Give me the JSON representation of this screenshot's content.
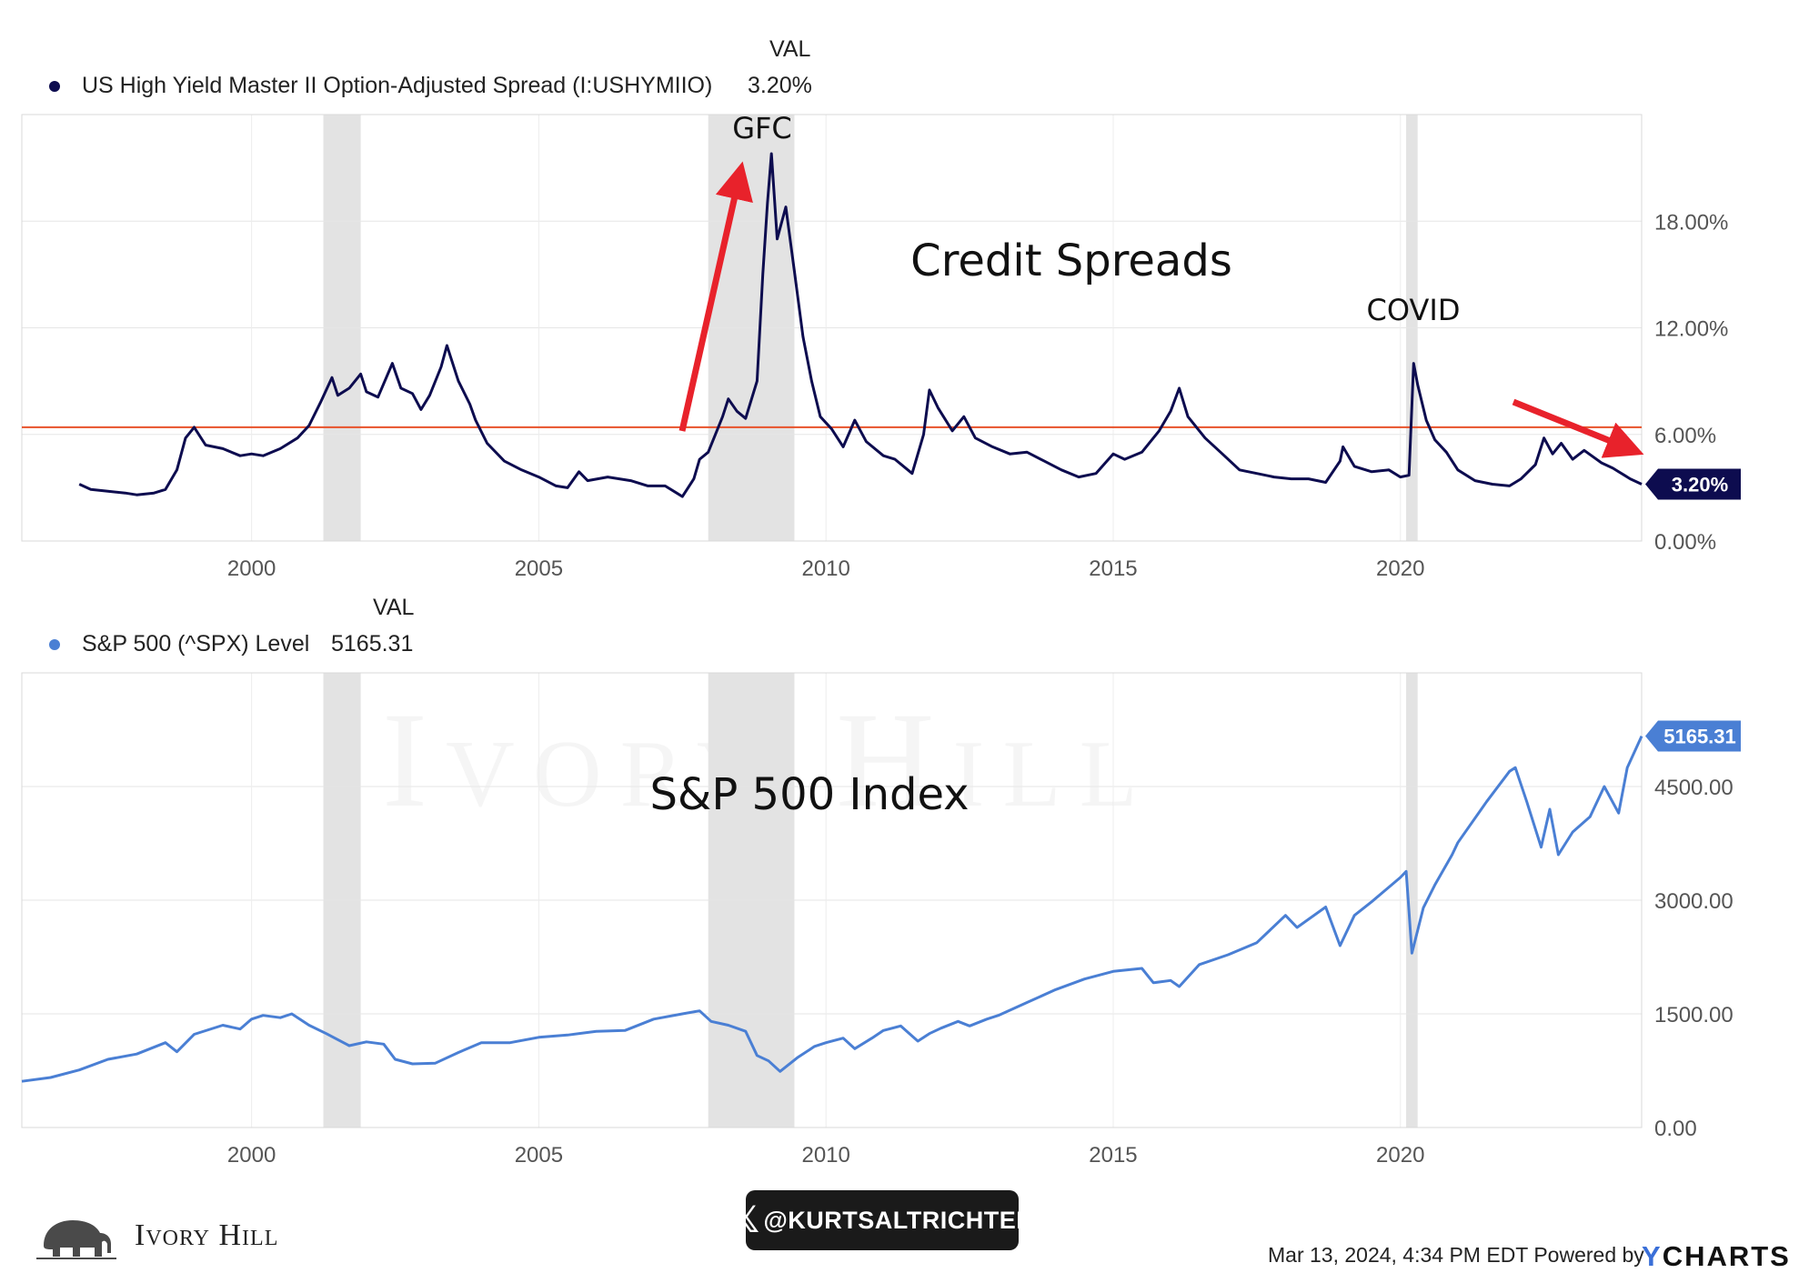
{
  "chart_data": [
    {
      "type": "line",
      "series": [
        {
          "name": "US High Yield Master II Option-Adjusted Spread (I:USHYMIIO)",
          "color": "#0d0c4f",
          "last_value_label": "3.20%",
          "points": [
            [
              1997.0,
              3.2
            ],
            [
              1997.2,
              2.9
            ],
            [
              1997.5,
              2.8
            ],
            [
              1997.8,
              2.7
            ],
            [
              1998.0,
              2.6
            ],
            [
              1998.3,
              2.7
            ],
            [
              1998.5,
              2.9
            ],
            [
              1998.7,
              4.0
            ],
            [
              1998.85,
              5.8
            ],
            [
              1999.0,
              6.4
            ],
            [
              1999.2,
              5.4
            ],
            [
              1999.5,
              5.2
            ],
            [
              1999.8,
              4.8
            ],
            [
              2000.0,
              4.9
            ],
            [
              2000.2,
              4.8
            ],
            [
              2000.5,
              5.2
            ],
            [
              2000.8,
              5.8
            ],
            [
              2001.0,
              6.5
            ],
            [
              2001.2,
              7.8
            ],
            [
              2001.4,
              9.2
            ],
            [
              2001.5,
              8.2
            ],
            [
              2001.7,
              8.6
            ],
            [
              2001.9,
              9.4
            ],
            [
              2002.0,
              8.4
            ],
            [
              2002.2,
              8.1
            ],
            [
              2002.45,
              10.0
            ],
            [
              2002.6,
              8.6
            ],
            [
              2002.8,
              8.3
            ],
            [
              2002.95,
              7.4
            ],
            [
              2003.1,
              8.2
            ],
            [
              2003.3,
              9.8
            ],
            [
              2003.4,
              11.0
            ],
            [
              2003.6,
              9.0
            ],
            [
              2003.8,
              7.7
            ],
            [
              2003.9,
              6.8
            ],
            [
              2004.1,
              5.5
            ],
            [
              2004.4,
              4.5
            ],
            [
              2004.7,
              4.0
            ],
            [
              2005.0,
              3.6
            ],
            [
              2005.3,
              3.1
            ],
            [
              2005.5,
              3.0
            ],
            [
              2005.7,
              3.9
            ],
            [
              2005.85,
              3.4
            ],
            [
              2006.2,
              3.6
            ],
            [
              2006.6,
              3.4
            ],
            [
              2006.9,
              3.1
            ],
            [
              2007.2,
              3.1
            ],
            [
              2007.4,
              2.7
            ],
            [
              2007.5,
              2.5
            ],
            [
              2007.7,
              3.5
            ],
            [
              2007.8,
              4.6
            ],
            [
              2007.95,
              5.0
            ],
            [
              2008.1,
              6.2
            ],
            [
              2008.2,
              7.0
            ],
            [
              2008.3,
              8.0
            ],
            [
              2008.45,
              7.3
            ],
            [
              2008.6,
              6.9
            ],
            [
              2008.8,
              9.0
            ],
            [
              2008.9,
              15.0
            ],
            [
              2008.98,
              19.0
            ],
            [
              2009.05,
              21.8
            ],
            [
              2009.15,
              17.0
            ],
            [
              2009.3,
              18.8
            ],
            [
              2009.45,
              15.2
            ],
            [
              2009.6,
              11.5
            ],
            [
              2009.75,
              9.0
            ],
            [
              2009.9,
              7.0
            ],
            [
              2010.1,
              6.3
            ],
            [
              2010.3,
              5.3
            ],
            [
              2010.5,
              6.8
            ],
            [
              2010.7,
              5.6
            ],
            [
              2011.0,
              4.8
            ],
            [
              2011.2,
              4.6
            ],
            [
              2011.5,
              3.8
            ],
            [
              2011.7,
              6.0
            ],
            [
              2011.8,
              8.5
            ],
            [
              2011.95,
              7.5
            ],
            [
              2012.2,
              6.2
            ],
            [
              2012.4,
              7.0
            ],
            [
              2012.6,
              5.8
            ],
            [
              2012.9,
              5.3
            ],
            [
              2013.2,
              4.9
            ],
            [
              2013.5,
              5.0
            ],
            [
              2013.8,
              4.5
            ],
            [
              2014.1,
              4.0
            ],
            [
              2014.4,
              3.6
            ],
            [
              2014.7,
              3.8
            ],
            [
              2015.0,
              4.9
            ],
            [
              2015.2,
              4.6
            ],
            [
              2015.5,
              5.0
            ],
            [
              2015.8,
              6.2
            ],
            [
              2016.0,
              7.3
            ],
            [
              2016.15,
              8.6
            ],
            [
              2016.3,
              7.0
            ],
            [
              2016.6,
              5.8
            ],
            [
              2016.9,
              4.9
            ],
            [
              2017.2,
              4.0
            ],
            [
              2017.5,
              3.8
            ],
            [
              2017.8,
              3.6
            ],
            [
              2018.1,
              3.5
            ],
            [
              2018.4,
              3.5
            ],
            [
              2018.7,
              3.3
            ],
            [
              2018.95,
              4.5
            ],
            [
              2019.0,
              5.3
            ],
            [
              2019.2,
              4.2
            ],
            [
              2019.5,
              3.9
            ],
            [
              2019.8,
              4.0
            ],
            [
              2020.0,
              3.6
            ],
            [
              2020.15,
              3.7
            ],
            [
              2020.23,
              10.0
            ],
            [
              2020.3,
              8.8
            ],
            [
              2020.45,
              6.8
            ],
            [
              2020.6,
              5.7
            ],
            [
              2020.8,
              5.0
            ],
            [
              2021.0,
              4.0
            ],
            [
              2021.3,
              3.4
            ],
            [
              2021.6,
              3.2
            ],
            [
              2021.9,
              3.1
            ],
            [
              2022.1,
              3.5
            ],
            [
              2022.35,
              4.3
            ],
            [
              2022.5,
              5.8
            ],
            [
              2022.65,
              4.9
            ],
            [
              2022.8,
              5.5
            ],
            [
              2023.0,
              4.6
            ],
            [
              2023.2,
              5.1
            ],
            [
              2023.5,
              4.4
            ],
            [
              2023.7,
              4.1
            ],
            [
              2023.9,
              3.7
            ],
            [
              2024.0,
              3.5
            ],
            [
              2024.2,
              3.2
            ]
          ]
        }
      ],
      "ylim": [
        0,
        24
      ],
      "xlim": [
        1996.0,
        2024.2
      ],
      "yticks": [
        0,
        6,
        12,
        18
      ],
      "ytick_labels": [
        "0.00%",
        "6.00%",
        "12.00%",
        "18.00%"
      ],
      "xticks": [
        2000,
        2005,
        2010,
        2015,
        2020
      ],
      "xtick_labels": [
        "2000",
        "2005",
        "2010",
        "2015",
        "2020"
      ],
      "reference_line": {
        "y": 6.4,
        "color": "#e8522a"
      },
      "annotations": {
        "title": "Credit Spreads",
        "gfc": "GFC",
        "covid": "COVID"
      },
      "recession_bands": [
        [
          2001.25,
          2001.9
        ],
        [
          2007.95,
          2009.45
        ],
        [
          2020.1,
          2020.3
        ]
      ],
      "grid": true
    },
    {
      "type": "line",
      "series": [
        {
          "name": "S&P 500 (^SPX) Level",
          "color": "#4a7fd4",
          "last_value_label": "5165.31",
          "points": [
            [
              1996.0,
              610
            ],
            [
              1996.5,
              660
            ],
            [
              1997.0,
              760
            ],
            [
              1997.5,
              900
            ],
            [
              1998.0,
              970
            ],
            [
              1998.5,
              1120
            ],
            [
              1998.7,
              1000
            ],
            [
              1999.0,
              1230
            ],
            [
              1999.5,
              1350
            ],
            [
              1999.8,
              1300
            ],
            [
              2000.0,
              1430
            ],
            [
              2000.2,
              1480
            ],
            [
              2000.5,
              1450
            ],
            [
              2000.7,
              1500
            ],
            [
              2001.0,
              1350
            ],
            [
              2001.3,
              1240
            ],
            [
              2001.7,
              1080
            ],
            [
              2002.0,
              1130
            ],
            [
              2002.3,
              1100
            ],
            [
              2002.5,
              900
            ],
            [
              2002.8,
              840
            ],
            [
              2003.2,
              850
            ],
            [
              2003.6,
              990
            ],
            [
              2004.0,
              1120
            ],
            [
              2004.5,
              1120
            ],
            [
              2005.0,
              1190
            ],
            [
              2005.5,
              1220
            ],
            [
              2006.0,
              1270
            ],
            [
              2006.5,
              1280
            ],
            [
              2007.0,
              1430
            ],
            [
              2007.5,
              1500
            ],
            [
              2007.8,
              1540
            ],
            [
              2008.0,
              1400
            ],
            [
              2008.3,
              1350
            ],
            [
              2008.6,
              1270
            ],
            [
              2008.8,
              950
            ],
            [
              2009.0,
              880
            ],
            [
              2009.2,
              740
            ],
            [
              2009.5,
              920
            ],
            [
              2009.8,
              1070
            ],
            [
              2010.0,
              1120
            ],
            [
              2010.3,
              1180
            ],
            [
              2010.5,
              1040
            ],
            [
              2010.8,
              1180
            ],
            [
              2011.0,
              1280
            ],
            [
              2011.3,
              1340
            ],
            [
              2011.6,
              1140
            ],
            [
              2011.8,
              1240
            ],
            [
              2012.0,
              1310
            ],
            [
              2012.3,
              1400
            ],
            [
              2012.5,
              1340
            ],
            [
              2012.8,
              1430
            ],
            [
              2013.0,
              1480
            ],
            [
              2013.5,
              1650
            ],
            [
              2014.0,
              1820
            ],
            [
              2014.5,
              1960
            ],
            [
              2015.0,
              2060
            ],
            [
              2015.5,
              2100
            ],
            [
              2015.7,
              1910
            ],
            [
              2016.0,
              1940
            ],
            [
              2016.15,
              1860
            ],
            [
              2016.5,
              2150
            ],
            [
              2017.0,
              2280
            ],
            [
              2017.5,
              2440
            ],
            [
              2018.0,
              2800
            ],
            [
              2018.2,
              2640
            ],
            [
              2018.7,
              2910
            ],
            [
              2018.95,
              2400
            ],
            [
              2019.2,
              2800
            ],
            [
              2019.5,
              2980
            ],
            [
              2020.0,
              3300
            ],
            [
              2020.1,
              3380
            ],
            [
              2020.2,
              2300
            ],
            [
              2020.4,
              2900
            ],
            [
              2020.6,
              3200
            ],
            [
              2020.9,
              3600
            ],
            [
              2021.0,
              3760
            ],
            [
              2021.5,
              4300
            ],
            [
              2021.9,
              4700
            ],
            [
              2022.0,
              4750
            ],
            [
              2022.2,
              4300
            ],
            [
              2022.45,
              3700
            ],
            [
              2022.6,
              4200
            ],
            [
              2022.75,
              3600
            ],
            [
              2023.0,
              3900
            ],
            [
              2023.3,
              4100
            ],
            [
              2023.55,
              4500
            ],
            [
              2023.8,
              4150
            ],
            [
              2023.95,
              4750
            ],
            [
              2024.2,
              5165.31
            ]
          ]
        }
      ],
      "ylim": [
        0,
        6000
      ],
      "xlim": [
        1996.0,
        2024.2
      ],
      "yticks": [
        0,
        1500,
        3000,
        4500
      ],
      "ytick_labels": [
        "0.00",
        "1500.00",
        "3000.00",
        "4500.00"
      ],
      "xticks": [
        2000,
        2005,
        2010,
        2015,
        2020
      ],
      "xtick_labels": [
        "2000",
        "2005",
        "2010",
        "2015",
        "2020"
      ],
      "annotations": {
        "title": "S&P 500 Index"
      },
      "recession_bands": [
        [
          2001.25,
          2001.9
        ],
        [
          2007.95,
          2009.45
        ],
        [
          2020.1,
          2020.3
        ]
      ],
      "grid": true
    }
  ],
  "legend": {
    "top": {
      "val_header": "VAL",
      "label": "US High Yield Master II Option-Adjusted Spread (I:USHYMIIO)",
      "value": "3.20%"
    },
    "bottom": {
      "val_header": "VAL",
      "label": "S&P 500 (^SPX) Level",
      "value": "5165.31"
    }
  },
  "footer": {
    "handle": "@KURTSALTRICHTER",
    "handle_icon": "x-logo-icon",
    "timestamp": "Mar 13, 2024, 4:34 PM EDT Powered by",
    "ycharts_y": "Y",
    "ycharts_rest": "CHARTS",
    "brand": "Ivory Hill",
    "brand_icon": "elephant-logo-icon",
    "watermark": "Ivory Hill"
  }
}
